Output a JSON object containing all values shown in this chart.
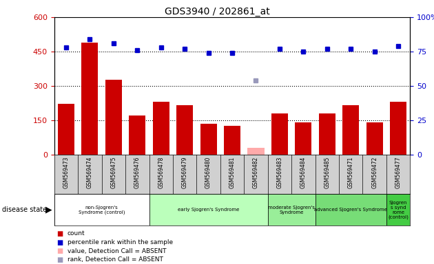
{
  "title": "GDS3940 / 202861_at",
  "samples": [
    "GSM569473",
    "GSM569474",
    "GSM569475",
    "GSM569476",
    "GSM569478",
    "GSM569479",
    "GSM569480",
    "GSM569481",
    "GSM569482",
    "GSM569483",
    "GSM569484",
    "GSM569485",
    "GSM569471",
    "GSM569472",
    "GSM569477"
  ],
  "count_values": [
    220,
    490,
    325,
    170,
    230,
    215,
    135,
    125,
    30,
    180,
    140,
    180,
    215,
    140,
    230
  ],
  "count_absent": [
    false,
    false,
    false,
    false,
    false,
    false,
    false,
    false,
    true,
    false,
    false,
    false,
    false,
    false,
    false
  ],
  "rank_values": [
    78,
    84,
    81,
    76,
    78,
    77,
    74,
    74,
    54,
    77,
    75,
    77,
    77,
    75,
    79
  ],
  "rank_absent": [
    false,
    false,
    false,
    false,
    false,
    false,
    false,
    false,
    true,
    false,
    false,
    false,
    false,
    false,
    false
  ],
  "groups": [
    {
      "label": "non-Sjogren's\nSyndrome (control)",
      "start": 0,
      "end": 4,
      "color": "#ffffff"
    },
    {
      "label": "early Sjogren's Syndrome",
      "start": 4,
      "end": 9,
      "color": "#bbffbb"
    },
    {
      "label": "moderate Sjogren's\nSyndrome",
      "start": 9,
      "end": 11,
      "color": "#99ee99"
    },
    {
      "label": "advanced Sjogren's Syndrome",
      "start": 11,
      "end": 14,
      "color": "#77dd77"
    },
    {
      "label": "Sjogren\ns synd\nrome\n(control)",
      "start": 14,
      "end": 15,
      "color": "#44cc44"
    }
  ],
  "bar_color_present": "#cc0000",
  "bar_color_absent": "#ffaaaa",
  "rank_color_present": "#0000cc",
  "rank_color_absent": "#9999bb",
  "ylim_left": [
    0,
    600
  ],
  "ylim_right": [
    0,
    100
  ],
  "yticks_left": [
    0,
    150,
    300,
    450,
    600
  ],
  "yticks_right": [
    0,
    25,
    50,
    75,
    100
  ],
  "disease_state_label": "disease state"
}
